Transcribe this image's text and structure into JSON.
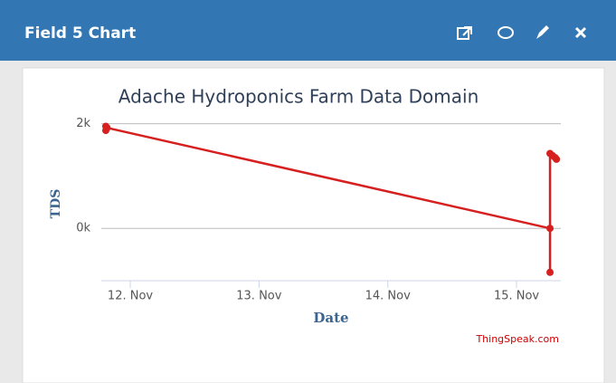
{
  "panel_title": "Field 5 Chart",
  "chart_data": {
    "type": "line",
    "title": "Adache Hydroponics Farm Data Domain",
    "xlabel": "Date",
    "ylabel": "TDS",
    "credit": "ThingSpeak.com",
    "series": [
      {
        "name": "TDS",
        "color": "#d62020",
        "x": [
          11.81,
          11.81,
          11.82,
          15.26,
          15.26,
          15.26,
          15.28,
          15.3,
          15.31
        ],
        "values": [
          1950,
          1870,
          1920,
          0,
          -840,
          1430,
          1390,
          1350,
          1320
        ]
      }
    ],
    "xlim": [
      11.775,
      15.344
    ],
    "xticks": [
      {
        "value": 12,
        "label": "12. Nov"
      },
      {
        "value": 13,
        "label": "13. Nov"
      },
      {
        "value": 14,
        "label": "14. Nov"
      },
      {
        "value": 15,
        "label": "15. Nov"
      }
    ],
    "ylim": [
      -1000,
      2200
    ],
    "yticks": [
      {
        "value": 0,
        "label": "0k"
      },
      {
        "value": 2000,
        "label": "2k"
      }
    ],
    "grid": true
  }
}
